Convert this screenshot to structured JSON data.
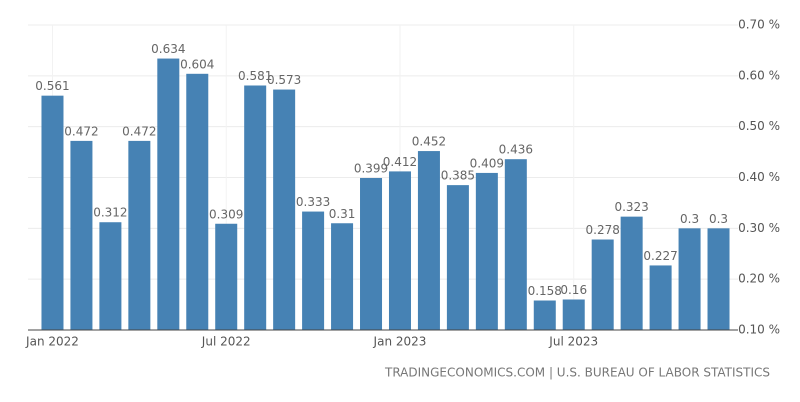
{
  "chart_data": {
    "type": "bar",
    "categories": [
      "Jan 2022",
      null,
      null,
      null,
      null,
      null,
      "Jul 2022",
      null,
      null,
      null,
      null,
      null,
      "Jan 2023",
      null,
      null,
      null,
      null,
      null,
      "Jul 2023",
      null,
      null,
      null,
      null,
      null
    ],
    "values": [
      0.561,
      0.472,
      0.312,
      0.472,
      0.634,
      0.604,
      0.309,
      0.581,
      0.573,
      0.333,
      0.31,
      0.399,
      0.412,
      0.452,
      0.385,
      0.409,
      0.436,
      0.158,
      0.16,
      0.278,
      0.323,
      0.227,
      0.3,
      0.3
    ],
    "color": "#4682b4",
    "ylim": [
      0.1,
      0.7
    ],
    "yticks": [
      {
        "value": 0.1,
        "label": "0.10 %"
      },
      {
        "value": 0.2,
        "label": "0.20 %"
      },
      {
        "value": 0.3,
        "label": "0.30 %"
      },
      {
        "value": 0.4,
        "label": "0.40 %"
      },
      {
        "value": 0.5,
        "label": "0.50 %"
      },
      {
        "value": 0.6,
        "label": "0.60 %"
      },
      {
        "value": 0.7,
        "label": "0.70 %"
      }
    ],
    "grid": true,
    "source": "TRADINGECONOMICS.COM | U.S. BUREAU OF LABOR STATISTICS"
  }
}
